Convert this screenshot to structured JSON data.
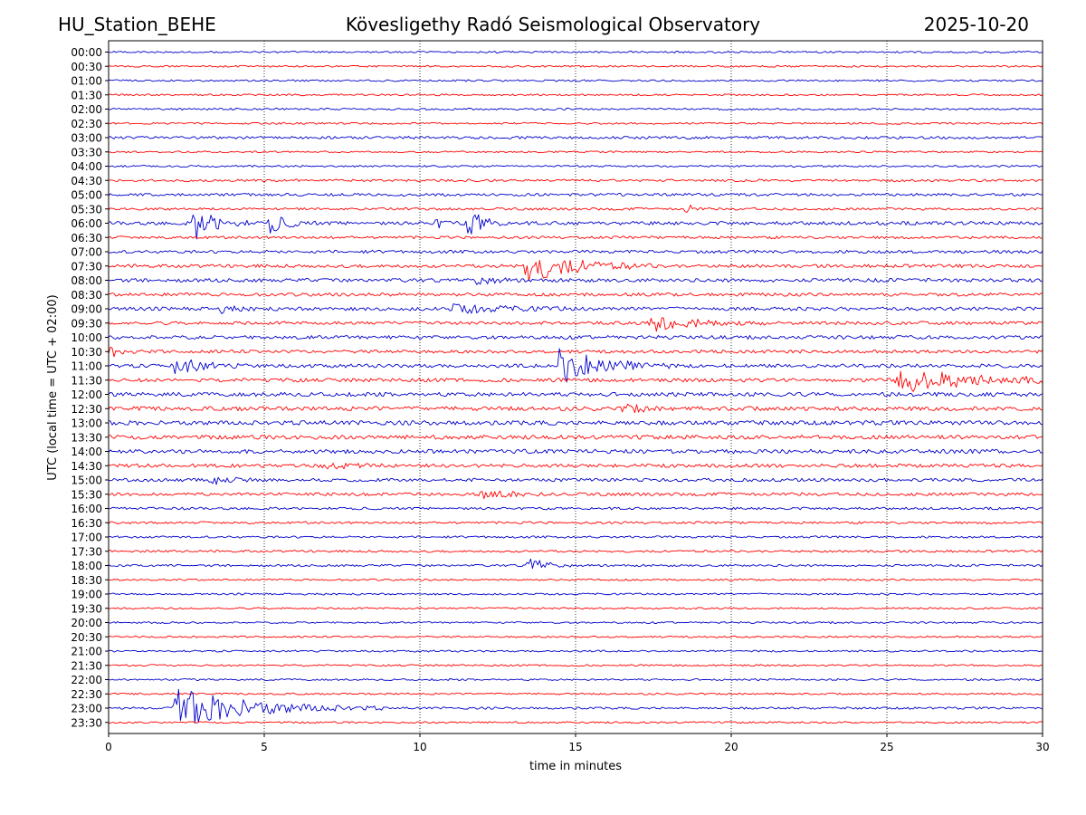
{
  "header": {
    "station": "HU_Station_BEHE",
    "observatory": "Kövesligethy Radó Seismological Observatory",
    "date": "2025-10-20"
  },
  "chart_data": {
    "type": "line",
    "title": "Kövesligethy Radó Seismological Observatory",
    "xlabel": "time in minutes",
    "ylabel": "UTC (local time = UTC + 02:00)",
    "xlim": [
      0,
      30
    ],
    "xticks": [
      0,
      5,
      10,
      15,
      20,
      25,
      30
    ],
    "xgrid_minutes": [
      5,
      10,
      15,
      20,
      25
    ],
    "trace_colors": [
      "#0000cc",
      "#ff0000"
    ],
    "rows": [
      "00:00",
      "00:30",
      "01:00",
      "01:30",
      "02:00",
      "02:30",
      "03:00",
      "03:30",
      "04:00",
      "04:30",
      "05:00",
      "05:30",
      "06:00",
      "06:30",
      "07:00",
      "07:30",
      "08:00",
      "08:30",
      "09:00",
      "09:30",
      "10:00",
      "10:30",
      "11:00",
      "11:30",
      "12:00",
      "12:30",
      "13:00",
      "13:30",
      "14:00",
      "14:30",
      "15:00",
      "15:30",
      "16:00",
      "16:30",
      "17:00",
      "17:30",
      "18:00",
      "18:30",
      "19:00",
      "19:30",
      "20:00",
      "20:30",
      "21:00",
      "21:30",
      "22:00",
      "22:30",
      "23:00",
      "23:30"
    ],
    "noise_level": [
      1,
      1,
      1,
      1,
      1,
      1,
      1.5,
      1,
      1,
      1.3,
      1.5,
      1.3,
      2,
      1.5,
      1.7,
      1.8,
      2,
      1.8,
      2,
      1.8,
      2,
      1.8,
      2,
      2,
      2.2,
      2.3,
      2.4,
      2.3,
      2.3,
      2,
      1.8,
      1.7,
      1.4,
      1.3,
      1.2,
      1.2,
      1.2,
      1,
      1,
      1,
      1,
      1,
      1,
      1,
      1,
      1,
      1.2,
      1
    ],
    "events": [
      {
        "row": "05:30",
        "minute": 18.6,
        "amplitude": 5,
        "duration": 0.2
      },
      {
        "row": "06:00",
        "minute": 2.8,
        "amplitude": 20,
        "duration": 0.6
      },
      {
        "row": "06:00",
        "minute": 5.2,
        "amplitude": 10,
        "duration": 0.5
      },
      {
        "row": "06:00",
        "minute": 10.5,
        "amplitude": 5,
        "duration": 0.3
      },
      {
        "row": "06:00",
        "minute": 11.6,
        "amplitude": 16,
        "duration": 0.4
      },
      {
        "row": "07:30",
        "minute": 13.4,
        "amplitude": 18,
        "duration": 1.4
      },
      {
        "row": "08:00",
        "minute": 11.8,
        "amplitude": 5,
        "duration": 0.5
      },
      {
        "row": "09:00",
        "minute": 3.5,
        "amplitude": 5,
        "duration": 0.4
      },
      {
        "row": "09:00",
        "minute": 11,
        "amplitude": 5,
        "duration": 1.5
      },
      {
        "row": "09:30",
        "minute": 17.5,
        "amplitude": 9,
        "duration": 1.2
      },
      {
        "row": "10:30",
        "minute": 0.1,
        "amplitude": 5,
        "duration": 0.3
      },
      {
        "row": "11:00",
        "minute": 2.1,
        "amplitude": 12,
        "duration": 0.7
      },
      {
        "row": "11:00",
        "minute": 14.5,
        "amplitude": 22,
        "duration": 1.2
      },
      {
        "row": "11:30",
        "minute": 25.4,
        "amplitude": 14,
        "duration": 2.2
      },
      {
        "row": "12:30",
        "minute": 16.6,
        "amplitude": 5,
        "duration": 0.5
      },
      {
        "row": "14:30",
        "minute": 7,
        "amplitude": 5,
        "duration": 0.6
      },
      {
        "row": "15:00",
        "minute": 3.1,
        "amplitude": 6,
        "duration": 0.6
      },
      {
        "row": "15:30",
        "minute": 12,
        "amplitude": 6,
        "duration": 0.7
      },
      {
        "row": "18:00",
        "minute": 13.5,
        "amplitude": 9,
        "duration": 0.5
      },
      {
        "row": "23:00",
        "minute": 2.2,
        "amplitude": 22,
        "duration": 2.2
      }
    ]
  }
}
